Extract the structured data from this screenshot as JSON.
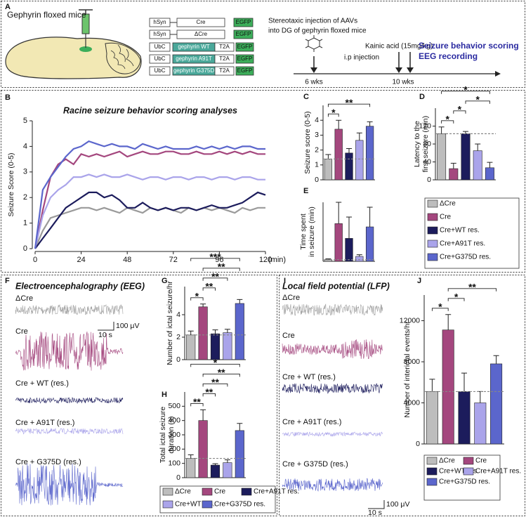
{
  "panel_labels": [
    "A",
    "B",
    "C",
    "D",
    "E",
    "F",
    "G",
    "H",
    "I",
    "J"
  ],
  "panel_a": {
    "mouse_label": "Gephyrin floxed mice",
    "constructs": [
      [
        "hSyn",
        "Cre",
        "EGFP"
      ],
      [
        "hSyn",
        "ΔCre",
        "EGFP"
      ],
      [
        "UbC",
        "gephyrin WT",
        "T2A",
        "EGFP"
      ],
      [
        "UbC",
        "gephyrin A91T",
        "T2A",
        "EGFP"
      ],
      [
        "UbC",
        "gephyrin G375D",
        "T2A",
        "EGFP"
      ]
    ],
    "injection_label": [
      "Stereotaxic injection of AAVs",
      "into DG of gephyrin floxed mice"
    ],
    "kainic_label": "Kainic acid (15mg/kg)",
    "ip_label": "i.p injection",
    "recording_label": [
      "Seizure behavior scoring",
      "EEG recording"
    ],
    "timepoints": [
      "6 wks",
      "10 wks"
    ]
  },
  "eeg": {
    "title": "Electroencephalography (EEG)",
    "labels": [
      "ΔCre",
      "Cre",
      "Cre + WT (res.)",
      "Cre + A91T (res.)",
      "Cre + G375D (res.)"
    ],
    "colors": [
      "#a0a0a0",
      "#a4477e",
      "#1c1c5c",
      "#aaa4ea",
      "#5b66cc"
    ],
    "scale_x": "10 s",
    "scale_y": "100 μV"
  },
  "lfp": {
    "title": "Local field potential (LFP)",
    "labels": [
      "ΔCre",
      "Cre",
      "Cre + WT (res.)",
      "Cre + A91T (res.)",
      "Cre + G375D (res.)"
    ],
    "colors": [
      "#a0a0a0",
      "#a4477e",
      "#1c1c5c",
      "#aaa4ea",
      "#5b66cc"
    ],
    "scale_x": "10 s",
    "scale_y": "100 μV"
  },
  "chart_data": [
    {
      "type": "line",
      "title": "Racine seizure behavior scoring analyses",
      "ylabel": [
        "Seizure Score (0-5)"
      ],
      "xlabel": "(min)",
      "x": [
        0,
        4,
        8,
        12,
        16,
        20,
        24,
        28,
        32,
        36,
        40,
        44,
        48,
        52,
        56,
        60,
        64,
        68,
        72,
        76,
        80,
        84,
        88,
        92,
        96,
        100,
        104,
        108,
        112,
        116,
        120
      ],
      "xlim": [
        0,
        120
      ],
      "xticks": [
        0,
        24,
        48,
        72,
        96,
        120
      ],
      "ylim": [
        0,
        5
      ],
      "yticks": [
        0,
        1,
        2,
        3,
        4,
        5
      ],
      "series": [
        {
          "name": "ΔCre",
          "color": "#9a9a9a",
          "values": [
            0,
            0.7,
            1.2,
            1.3,
            1.4,
            1.5,
            1.6,
            1.6,
            1.5,
            1.6,
            1.5,
            1.4,
            1.6,
            1.5,
            1.4,
            1.6,
            1.5,
            1.6,
            1.5,
            1.4,
            1.6,
            1.5,
            1.6,
            1.5,
            1.6,
            1.5,
            1.4,
            1.6,
            1.5,
            1.6,
            1.6
          ]
        },
        {
          "name": "Cre",
          "color": "#a4477e",
          "values": [
            0,
            1.5,
            2.8,
            3.3,
            3.5,
            3.3,
            3.7,
            3.6,
            3.7,
            3.6,
            3.7,
            3.8,
            3.6,
            3.7,
            3.8,
            3.7,
            3.7,
            3.8,
            3.8,
            3.7,
            3.7,
            3.8,
            3.7,
            3.7,
            3.8,
            3.7,
            3.8,
            3.7,
            3.8,
            3.7,
            3.7
          ]
        },
        {
          "name": "Cre+WT res.",
          "color": "#1c1c5c",
          "values": [
            0,
            0.4,
            0.8,
            1.2,
            1.6,
            1.8,
            2.0,
            2.2,
            2.2,
            2.0,
            2.1,
            1.9,
            1.6,
            1.6,
            1.8,
            1.6,
            1.5,
            1.6,
            1.5,
            1.6,
            1.6,
            1.5,
            1.6,
            1.7,
            1.6,
            1.6,
            1.7,
            1.8,
            2.0,
            2.2,
            2.1
          ]
        },
        {
          "name": "Cre+A91T res.",
          "color": "#aaa4ea",
          "values": [
            0,
            1.3,
            2.0,
            2.3,
            2.5,
            2.8,
            2.8,
            2.9,
            2.8,
            2.9,
            2.8,
            2.8,
            2.9,
            2.8,
            2.7,
            2.8,
            2.8,
            2.7,
            2.8,
            2.8,
            2.7,
            2.8,
            2.8,
            2.7,
            2.8,
            2.8,
            2.7,
            2.8,
            2.8,
            2.7,
            2.7
          ]
        },
        {
          "name": "Cre+G375D res.",
          "color": "#5b66cc",
          "values": [
            0,
            2.3,
            2.8,
            3.2,
            3.6,
            3.9,
            4.0,
            4.2,
            4.1,
            4.0,
            4.1,
            4.0,
            4.0,
            3.9,
            4.1,
            4.0,
            3.9,
            4.0,
            3.9,
            3.9,
            3.9,
            4.0,
            3.9,
            4.0,
            3.9,
            4.0,
            3.9,
            4.0,
            4.0,
            3.9,
            3.9
          ]
        }
      ]
    },
    {
      "type": "bar",
      "ylabel": [
        "Seizure score (0-5)"
      ],
      "categories": [
        "ΔCre",
        "Cre",
        "Cre+WT res.",
        "Cre+A91T res.",
        "Cre+G375D res."
      ],
      "colors": [
        "#bdbdbd",
        "#a4477e",
        "#1c1c5c",
        "#aaa4ea",
        "#5b66cc"
      ],
      "values": [
        1.4,
        3.4,
        1.8,
        2.65,
        3.6
      ],
      "errors": [
        0.3,
        0.6,
        0.3,
        0.5,
        0.3
      ],
      "ylim": [
        0,
        5
      ],
      "yticks": [
        0,
        1,
        2,
        3,
        4
      ],
      "reference_line": true,
      "significance": [
        {
          "pair": [
            0,
            1
          ],
          "label": "*"
        },
        {
          "pair": [
            0,
            4
          ],
          "label": "**"
        }
      ]
    },
    {
      "type": "bar",
      "ylabel": [
        "Latency to the",
        "first seizure (min)"
      ],
      "colors": [
        "#bdbdbd",
        "#a4477e",
        "#1c1c5c",
        "#aaa4ea",
        "#5b66cc"
      ],
      "values": [
        103,
        25,
        103,
        65,
        27
      ],
      "errors": [
        15,
        12,
        5,
        15,
        12
      ],
      "ylim": [
        0,
        160
      ],
      "yticks": [
        0,
        40,
        80,
        120
      ],
      "reference_line": true,
      "significance": [
        {
          "pair": [
            0,
            1
          ],
          "label": "*"
        },
        {
          "pair": [
            1,
            2
          ],
          "label": "*"
        },
        {
          "pair": [
            2,
            4
          ],
          "label": "*"
        },
        {
          "pair": [
            0,
            4
          ],
          "label": "*"
        }
      ]
    },
    {
      "type": "bar",
      "ylabel": [
        "Time spent",
        "in seizure (min)"
      ],
      "colors": [
        "#bdbdbd",
        "#a4477e",
        "#1c1c5c",
        "#aaa4ea",
        "#5b66cc"
      ],
      "values": [
        1,
        23,
        14,
        3,
        21
      ],
      "errors": [
        0.5,
        13,
        13,
        1,
        12
      ],
      "ylim": [
        0,
        36
      ],
      "yticks": [],
      "reference_line": true,
      "significance": []
    },
    {
      "type": "bar",
      "ylabel": [
        "Number of ictal seizure/hr"
      ],
      "categories": [
        "ΔCre",
        "Cre",
        "Cre+A91T res.",
        "Cre+WT res.",
        "Cre+G375D res."
      ],
      "legend_order": [
        0,
        1,
        3,
        2,
        4
      ],
      "colors": [
        "#bdbdbd",
        "#a4477e",
        "#1c1c5c",
        "#aaa4ea",
        "#5b66cc"
      ],
      "values": [
        2.2,
        4.7,
        2.3,
        2.4,
        5.0
      ],
      "errors": [
        0.35,
        0.25,
        0.35,
        0.3,
        0.35
      ],
      "ylim": [
        0,
        6.5
      ],
      "yticks": [
        0,
        2,
        4
      ],
      "reference_line": true,
      "significance": [
        {
          "pair": [
            0,
            1
          ],
          "label": "*"
        },
        {
          "pair": [
            1,
            2
          ],
          "label": "**"
        },
        {
          "pair": [
            1,
            3
          ],
          "label": "**"
        },
        {
          "pair": [
            1,
            4
          ],
          "label": "**"
        },
        {
          "pair": [
            0,
            4
          ],
          "label": "***"
        }
      ]
    },
    {
      "type": "bar",
      "ylabel": [
        "Total ictal seizure",
        "duration (s)"
      ],
      "colors": [
        "#bdbdbd",
        "#a4477e",
        "#1c1c5c",
        "#aaa4ea",
        "#5b66cc"
      ],
      "values": [
        135,
        400,
        88,
        105,
        330
      ],
      "errors": [
        25,
        75,
        10,
        20,
        50
      ],
      "ylim": [
        0,
        600
      ],
      "yticks": [
        0,
        100,
        200,
        300,
        400,
        500
      ],
      "reference_line": true,
      "significance": [
        {
          "pair": [
            0,
            1
          ],
          "label": "**"
        },
        {
          "pair": [
            1,
            2
          ],
          "label": "**"
        },
        {
          "pair": [
            1,
            3
          ],
          "label": "**"
        },
        {
          "pair": [
            1,
            4
          ],
          "label": "**"
        },
        {
          "pair": [
            0,
            4
          ],
          "label": "*"
        }
      ]
    },
    {
      "type": "bar",
      "ylabel": [
        "Number of interictal events/hr"
      ],
      "categories": [
        "ΔCre",
        "Cre",
        "Cre+WT res.",
        "Cre+A91T res.",
        "Cre+G375D res."
      ],
      "colors": [
        "#bdbdbd",
        "#a4477e",
        "#1c1c5c",
        "#aaa4ea",
        "#5b66cc"
      ],
      "values": [
        5100,
        11100,
        5100,
        4000,
        7800
      ],
      "errors": [
        1200,
        1500,
        1800,
        1100,
        800
      ],
      "ylim": [
        0,
        14500
      ],
      "yticks": [
        0,
        4000,
        8000,
        12000
      ],
      "reference_line": true,
      "significance": [
        {
          "pair": [
            0,
            1
          ],
          "label": "*"
        },
        {
          "pair": [
            1,
            2
          ],
          "label": "*"
        },
        {
          "pair": [
            1,
            4
          ],
          "label": "**"
        }
      ]
    }
  ]
}
